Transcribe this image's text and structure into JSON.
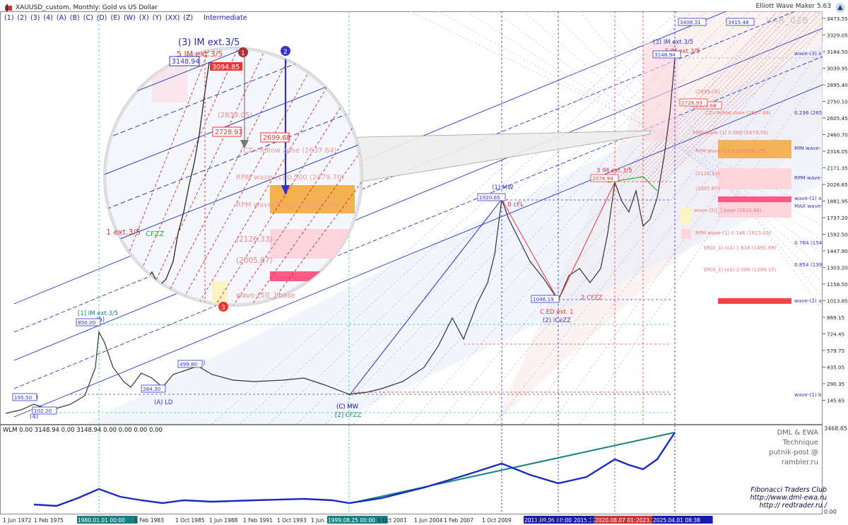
{
  "window": {
    "title": "XAUUSD_custom, Monthly:  Gold vs US Dollar",
    "indicator_name": "Elliott Wave Maker 5.63"
  },
  "wave_degrees": [
    "(1)",
    "(2)",
    "(3)",
    "(4)",
    "(A)",
    "(B)",
    "(C)",
    "(D)",
    "(E)",
    "(W)",
    "(X)",
    "(Y)",
    "(XX)",
    "(Z)"
  ],
  "current_degree": "Intermediate",
  "var_label": "VAR_02B",
  "price_axis": [
    "3473.55",
    "3329.05",
    "3184.50",
    "3039.95",
    "2895.40",
    "2750.10",
    "2605.45",
    "2460.70",
    "2316.05",
    "2171.35",
    "2026.65",
    "1881.95",
    "1737.20",
    "1592.50",
    "1447.90",
    "1303.20",
    "1158.50",
    "1013.85",
    "869.15",
    "724.45",
    "579.75",
    "435.05",
    "290.35",
    "145.65"
  ],
  "time_axis": [
    "1 Jun 1972",
    "1 Feb 1975",
    "1980.01.01 00:00",
    "1 Feb 1983",
    "1 Oct 1985",
    "1 Jun 1988",
    "1 Feb 1991",
    "1 Oct 1993",
    "1 Jun 1996",
    "1999.08.25 00:00",
    "1 Oct 2001",
    "1 Jun 2004",
    "1 Feb 2007",
    "1 Oct 2009",
    "2011.09.06 00:00",
    "1 Jun 2012",
    "2015.12.03 03:20",
    "1 Oct 2017",
    "2020.08.07 01:21",
    "2023.10",
    "2025.04.01 08:38"
  ],
  "price_boxes": [
    "195.50",
    "102.20",
    "850.00",
    "284.30",
    "499.80",
    "1920.65",
    "1046.19",
    "2074.94",
    "3148.94",
    "3408.31",
    "3415.48",
    "2699.68",
    "2728.93"
  ],
  "wave_labels": [
    "(3)",
    "(4)",
    "(5)",
    "(B)",
    "(A) LD",
    "(C) MW",
    "[2] CFZZ",
    "[1] IM ext.3/5",
    "(1) MW",
    "(2) iCeZZ",
    "C ED ext. 1",
    "B cFL",
    "2 CFZZ",
    "3 IM ext.3/5",
    "(3) IM ext.3/5",
    "3 IM ext.3/5",
    "(C) MW"
  ],
  "right_levels": [
    "wave-(3) a",
    "0.236 (265",
    "MIN wave-",
    "RPM wave-",
    "wave-(1) a",
    "MAX wave-",
    "0.764 (154",
    "0.854 (139",
    "wave-(2) a",
    "wave-(1) b"
  ],
  "zone_notes": [
    "(2839.05)",
    "RPM wave-(1) 0.500 (2479.70)",
    "RPM wave-(1) 0.23(2392.75)",
    "(2126.33)",
    "(2005.87)",
    "wave-(5)[_] base (1810.46)",
    "RPM wave-(1) 0.146 (1615.03)",
    "ER(0_1) (x1) 1.618 (1491.89)",
    "ER(0_1) (x1) 2.000 (1299.15)",
    "wave-(5)[_] base",
    "CZ=Yellow zone (2637.64)"
  ],
  "magnifier": {
    "title": "(3) IM ext.3/5",
    "subtitle": "5 IM ext.3/5",
    "price_left": "3148.94",
    "price_right": "3094.85",
    "level_a": "(2839.05)",
    "level_b": "2728.93",
    "level_c": "2699.68",
    "yellow_zone": "CZ=Yellow zone (2637.64)",
    "rpm_a": "RPM wave-(1) 0.500 (2479.70)",
    "rpm_b": "RPM wave-(1) 0.23(2392.75)",
    "level_d": "(2126.33)",
    "level_e": "(2005.87)",
    "base": "wave-(5)[_] base",
    "ext_label": "1 ext.3/5",
    "cfzz": "CFZZ",
    "marker1": "1",
    "marker2": "2",
    "marker3": "3"
  },
  "wlm": {
    "label": "WLM 0.00 3148.94 0.00 3148.94 0.00 0.00 0.00 0.00",
    "scale_top": "3468.85",
    "scale_bottom": "0.00"
  },
  "credits": {
    "technique": "DML & EWA Technique",
    "email": "putnik-post @ rambler.ru",
    "club": "Fibonacci   Traders   Club",
    "site1": "http://www.dml-ewa.ru",
    "site2": "http:// redtrader.ru /"
  }
}
